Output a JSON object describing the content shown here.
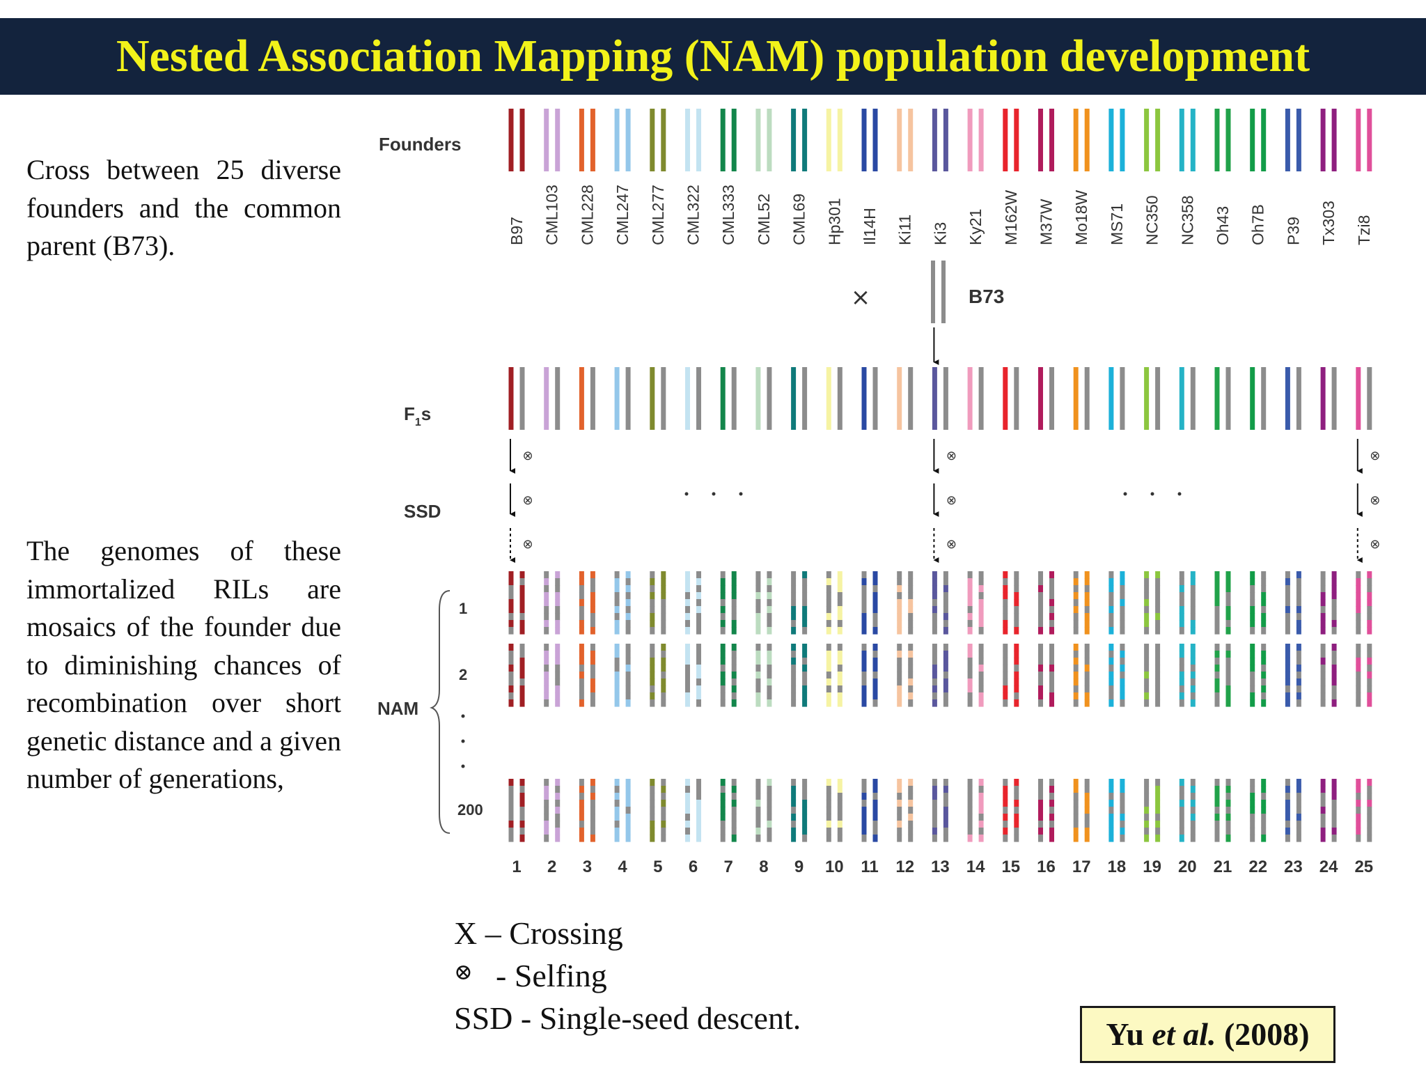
{
  "title": "Nested Association Mapping (NAM) population development",
  "left_text": {
    "para1": "Cross between 25 diverse founders and the common parent (B73).",
    "para2": "The genomes of these immortalized RILs are mosaics of the founder due to diminishing chances of recombination over short genetic distance and a given number of generations,"
  },
  "figure": {
    "row_labels": {
      "founders": "Founders",
      "f1": "F",
      "f1_sub": "1",
      "f1_suffix": "s",
      "ssd": "SSD",
      "nam": "NAM"
    },
    "nam_line_labels": [
      "1",
      "2",
      "200"
    ],
    "cross_symbol": "×",
    "selfing_symbol": "⊗",
    "parent": {
      "name": "B73",
      "color": "#8c8c8c"
    },
    "founders": [
      {
        "name": "B97",
        "color": "#a01f24"
      },
      {
        "name": "CML103",
        "color": "#c9a3d6"
      },
      {
        "name": "CML228",
        "color": "#e2622c"
      },
      {
        "name": "CML247",
        "color": "#94c7ea"
      },
      {
        "name": "CML277",
        "color": "#7f8a2e"
      },
      {
        "name": "CML322",
        "color": "#c3e3f1"
      },
      {
        "name": "CML333",
        "color": "#13864b"
      },
      {
        "name": "CML52",
        "color": "#bcdcc0"
      },
      {
        "name": "CML69",
        "color": "#0f7a7a"
      },
      {
        "name": "Hp301",
        "color": "#f6f3a3"
      },
      {
        "name": "Il14H",
        "color": "#2a49a3"
      },
      {
        "name": "Ki11",
        "color": "#f6c49f"
      },
      {
        "name": "Ki3",
        "color": "#5a579d"
      },
      {
        "name": "Ky21",
        "color": "#f09bbd"
      },
      {
        "name": "M162W",
        "color": "#e8242c"
      },
      {
        "name": "M37W",
        "color": "#b01c5c"
      },
      {
        "name": "Mo18W",
        "color": "#f0921e"
      },
      {
        "name": "MS71",
        "color": "#1cb1d9"
      },
      {
        "name": "NC350",
        "color": "#8cc63f"
      },
      {
        "name": "NC358",
        "color": "#25b3c6"
      },
      {
        "name": "Oh43",
        "color": "#21a24a"
      },
      {
        "name": "Oh7B",
        "color": "#129c48"
      },
      {
        "name": "P39",
        "color": "#3a5bab"
      },
      {
        "name": "Tx303",
        "color": "#8e1f7f"
      },
      {
        "name": "Tzi8",
        "color": "#e04f9a"
      }
    ],
    "family_numbers": [
      "1",
      "2",
      "3",
      "4",
      "5",
      "6",
      "7",
      "8",
      "9",
      "10",
      "11",
      "12",
      "13",
      "14",
      "15",
      "16",
      "17",
      "18",
      "19",
      "20",
      "21",
      "22",
      "23",
      "24",
      "25"
    ]
  },
  "legend": {
    "cross": "X – Crossing",
    "self_symbol": "⊗",
    "self": "-  Selfing",
    "ssd": "SSD - Single-seed descent."
  },
  "citation": {
    "author": "Yu",
    "etal": "et al.",
    "year": "(2008)"
  }
}
